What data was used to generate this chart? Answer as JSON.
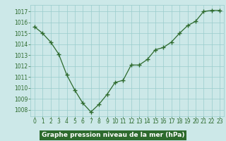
{
  "x": [
    0,
    1,
    2,
    3,
    4,
    5,
    6,
    7,
    8,
    9,
    10,
    11,
    12,
    13,
    14,
    15,
    16,
    17,
    18,
    19,
    20,
    21,
    22,
    23
  ],
  "y": [
    1015.6,
    1015.0,
    1014.2,
    1013.1,
    1011.2,
    1009.8,
    1008.6,
    1007.8,
    1008.5,
    1009.4,
    1010.5,
    1010.7,
    1012.1,
    1012.1,
    1012.6,
    1013.5,
    1013.7,
    1014.2,
    1015.0,
    1015.7,
    1016.1,
    1017.0,
    1017.1,
    1017.1
  ],
  "line_color": "#2d6a2d",
  "marker_color": "#2d6a2d",
  "bg_color": "#cce8e8",
  "plot_bg_color": "#cce8e8",
  "grid_color": "#99cccc",
  "xlabel": "Graphe pression niveau de la mer (hPa)",
  "xlabel_color": "#ffffff",
  "xlabel_bg": "#2d6a2d",
  "tick_color": "#2d6a2d",
  "ylim": [
    1007.4,
    1017.6
  ],
  "yticks": [
    1008,
    1009,
    1010,
    1011,
    1012,
    1013,
    1014,
    1015,
    1016,
    1017
  ],
  "xlim": [
    -0.5,
    23.5
  ],
  "xticks": [
    0,
    1,
    2,
    3,
    4,
    5,
    6,
    7,
    8,
    9,
    10,
    11,
    12,
    13,
    14,
    15,
    16,
    17,
    18,
    19,
    20,
    21,
    22,
    23
  ],
  "xlabel_fontsize": 6.5,
  "tick_fontsize": 5.5
}
